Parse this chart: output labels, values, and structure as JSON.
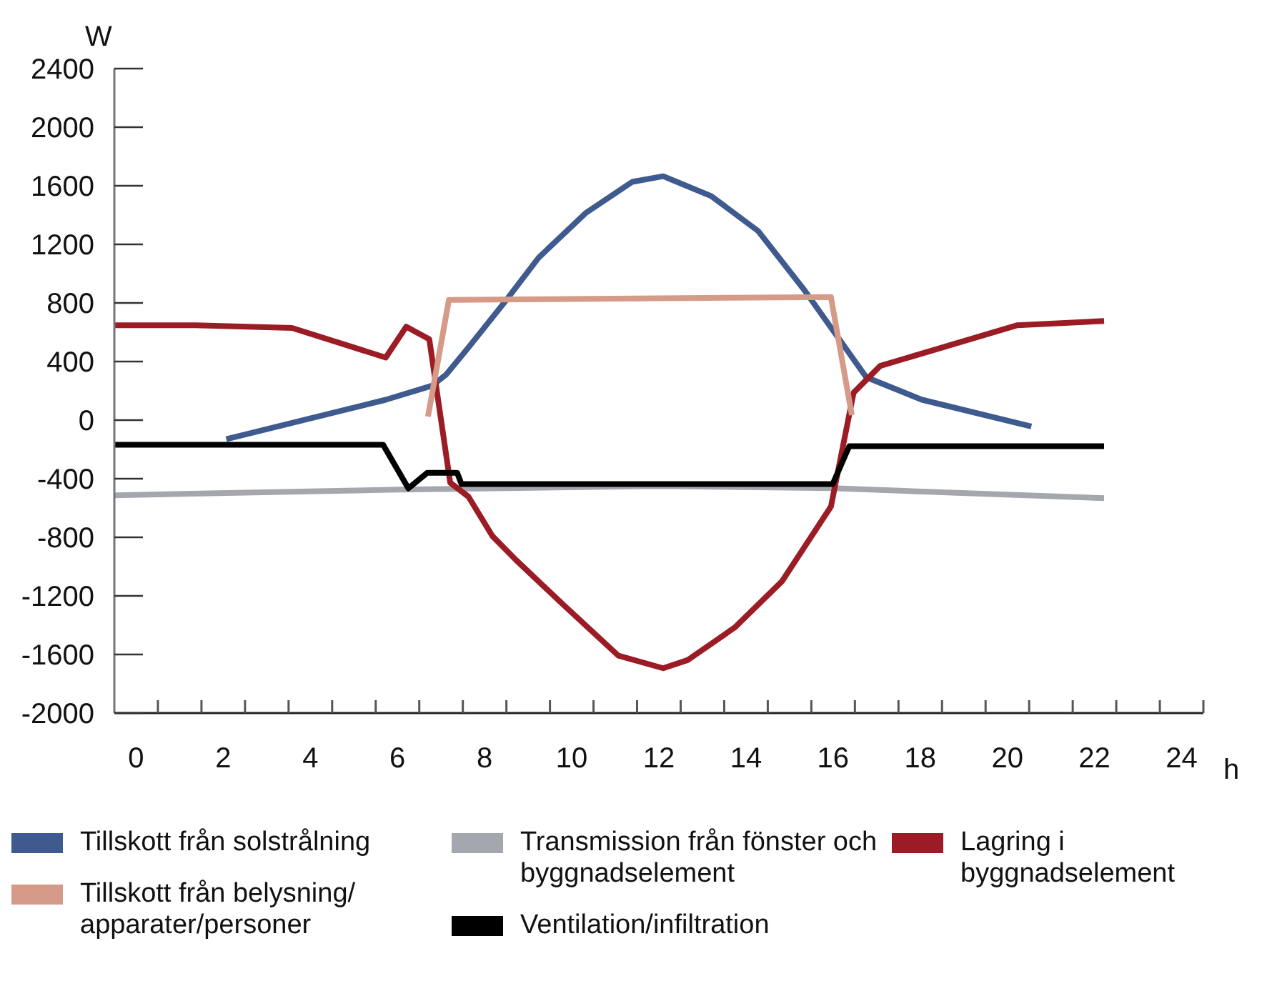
{
  "chart_data": {
    "type": "line",
    "xlabel": "h",
    "ylabel": "W",
    "xlim": [
      -0.5,
      24.5
    ],
    "xticks": [
      0,
      {
        "value": 0.5,
        "label": null
      },
      {
        "value": 1.5,
        "label": null
      },
      2,
      {
        "value": 2.5,
        "label": null
      },
      {
        "value": 3.5,
        "label": null
      },
      4,
      {
        "value": 4.5,
        "label": null
      },
      {
        "value": 5.5,
        "label": null
      },
      6,
      {
        "value": 6.5,
        "label": null
      },
      {
        "value": 7.5,
        "label": null
      },
      8,
      {
        "value": 8.5,
        "label": null
      },
      {
        "value": 9.5,
        "label": null
      },
      10,
      {
        "value": 10.5,
        "label": null
      },
      {
        "value": 11.5,
        "label": null
      },
      12,
      {
        "value": 12.5,
        "label": null
      },
      {
        "value": 13.5,
        "label": null
      },
      14,
      {
        "value": 14.5,
        "label": null
      },
      {
        "value": 15.5,
        "label": null
      },
      16,
      {
        "value": 16.5,
        "label": null
      },
      {
        "value": 17.5,
        "label": null
      },
      18,
      {
        "value": 18.5,
        "label": null
      },
      {
        "value": 19.5,
        "label": null
      },
      20,
      {
        "value": 20.5,
        "label": null
      },
      {
        "value": 21.5,
        "label": null
      },
      22,
      {
        "value": 22.5,
        "label": null
      },
      {
        "value": 23.5,
        "label": null
      },
      24,
      {
        "value": 24.5,
        "label": null
      }
    ],
    "ylim": [
      -2000,
      2400
    ],
    "yticks": [
      -2000,
      -1600,
      -1200,
      -800,
      -400,
      0,
      400,
      800,
      1200,
      1600,
      2000,
      2400
    ],
    "grid": false,
    "legend": "bottom",
    "marker": "none",
    "line_style": "solid",
    "series": [
      {
        "name": "Tillskott från solstrålning",
        "color": "#3f5a8f",
        "x": [
          2.07,
          5.73,
          6.79,
          7.12,
          7.65,
          8.5,
          9.24,
          10.33,
          11.39,
          12.1,
          13.2,
          14.28,
          15.34,
          16.76,
          18.04,
          20.55
        ],
        "values": [
          -130,
          139,
          235,
          312,
          504,
          821,
          1109,
          1416,
          1627,
          1665,
          1530,
          1291,
          888,
          293,
          139,
          -43
        ]
      },
      {
        "name": "Transmission från fönster och byggnadselement",
        "color": "#a5a7ae",
        "x": [
          -0.5,
          6,
          12,
          16,
          22.22
        ],
        "values": [
          -513,
          -475,
          -450,
          -465,
          -533
        ]
      },
      {
        "name": "Lagring i byggnadselement",
        "color": "#9b1c24",
        "x": [
          -0.5,
          1.36,
          3.58,
          5.73,
          6.2,
          6.73,
          7.21,
          7.63,
          8.18,
          8.72,
          9.78,
          11.07,
          12.1,
          12.67,
          13.74,
          14.83,
          15.95,
          16.47,
          17.08,
          20.23,
          22.22
        ],
        "values": [
          648,
          648,
          629,
          427,
          638,
          552,
          -427,
          -523,
          -792,
          -955,
          -1253,
          -1608,
          -1694,
          -1637,
          -1416,
          -1099,
          -590,
          187,
          370,
          648,
          677
        ]
      },
      {
        "name": "Tillskott från belysning/ apparater/personer",
        "color": "#d59a88",
        "x": [
          6.7,
          7.18,
          15.95,
          16.43
        ],
        "values": [
          24,
          821,
          840,
          34
        ]
      },
      {
        "name": "Ventilation/infiltration",
        "color": "#000000",
        "x": [
          -0.5,
          5.67,
          6.25,
          6.68,
          7.37,
          7.47,
          15.99,
          16.37,
          22.22
        ],
        "values": [
          -168,
          -168,
          -466,
          -360,
          -360,
          -437,
          -437,
          -178,
          -178
        ]
      }
    ]
  }
}
